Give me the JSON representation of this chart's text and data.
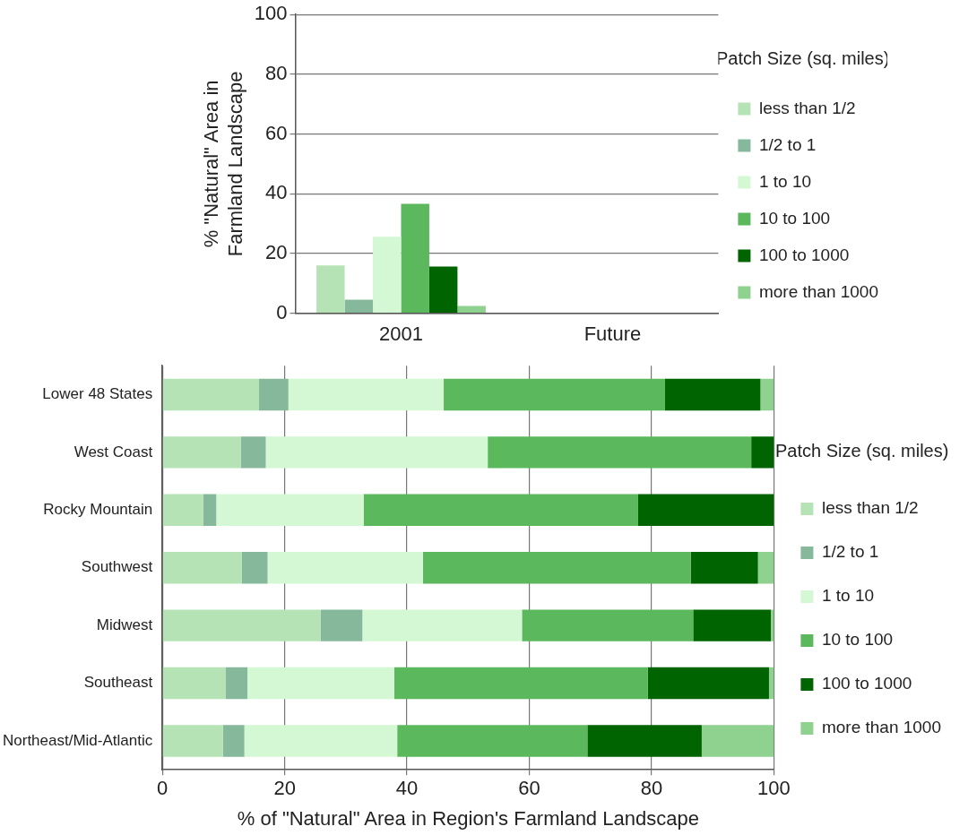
{
  "chart_data": [
    {
      "type": "bar",
      "ylabel": "% \"Natural\" Area in Farmland Landscape",
      "legend_title": "Patch Size (sq. miles)",
      "categories": [
        "2001",
        "Future"
      ],
      "ylim": [
        0,
        100
      ],
      "yticks": [
        0,
        20,
        40,
        60,
        80,
        100
      ],
      "grid": "y",
      "legend": "right",
      "series": [
        {
          "name": "less than 1/2",
          "color": "#b5e3b5",
          "values": [
            16.0,
            null
          ]
        },
        {
          "name": "1/2 to 1",
          "color": "#86b99c",
          "values": [
            4.5,
            null
          ]
        },
        {
          "name": "1 to 10",
          "color": "#d4f7d4",
          "values": [
            25.6,
            null
          ]
        },
        {
          "name": "10 to 100",
          "color": "#5cb85c",
          "values": [
            36.6,
            null
          ]
        },
        {
          "name": "100 to 1000",
          "color": "#006400",
          "values": [
            15.6,
            null
          ]
        },
        {
          "name": "more than 1000",
          "color": "#8fd18f",
          "values": [
            2.4,
            null
          ]
        }
      ]
    },
    {
      "type": "bar",
      "orientation": "horizontal",
      "stacked": true,
      "xlabel": "% of \"Natural\" Area in Region's Farmland Landscape",
      "legend_title": "Patch Size (sq. miles)",
      "categories": [
        "Lower 48 States",
        "West Coast",
        "Rocky Mountain",
        "Southwest",
        "Midwest",
        "Southeast",
        "Northeast/Mid-Atlantic"
      ],
      "xlim": [
        0,
        100
      ],
      "xticks": [
        0,
        20,
        40,
        60,
        80,
        100
      ],
      "grid": "x",
      "legend": "right",
      "series": [
        {
          "name": "less than 1/2",
          "color": "#b5e3b5",
          "values": [
            15.8,
            12.8,
            6.7,
            13.0,
            25.9,
            10.3,
            9.9
          ]
        },
        {
          "name": "1/2 to 1",
          "color": "#86b99c",
          "values": [
            4.8,
            4.1,
            2.1,
            4.2,
            6.8,
            3.6,
            3.5
          ]
        },
        {
          "name": "1 to 10",
          "color": "#d4f7d4",
          "values": [
            25.4,
            36.3,
            24.1,
            25.4,
            26.1,
            24.0,
            25.0
          ]
        },
        {
          "name": "10 to 100",
          "color": "#5cb85c",
          "values": [
            36.2,
            43.1,
            44.9,
            43.8,
            28.0,
            41.5,
            31.1
          ]
        },
        {
          "name": "100 to 1000",
          "color": "#006400",
          "values": [
            15.6,
            3.7,
            22.2,
            11.0,
            12.7,
            19.8,
            18.7
          ]
        },
        {
          "name": "more than 1000",
          "color": "#8fd18f",
          "values": [
            2.2,
            0,
            0,
            2.6,
            0.5,
            0.8,
            11.8
          ]
        }
      ]
    }
  ]
}
